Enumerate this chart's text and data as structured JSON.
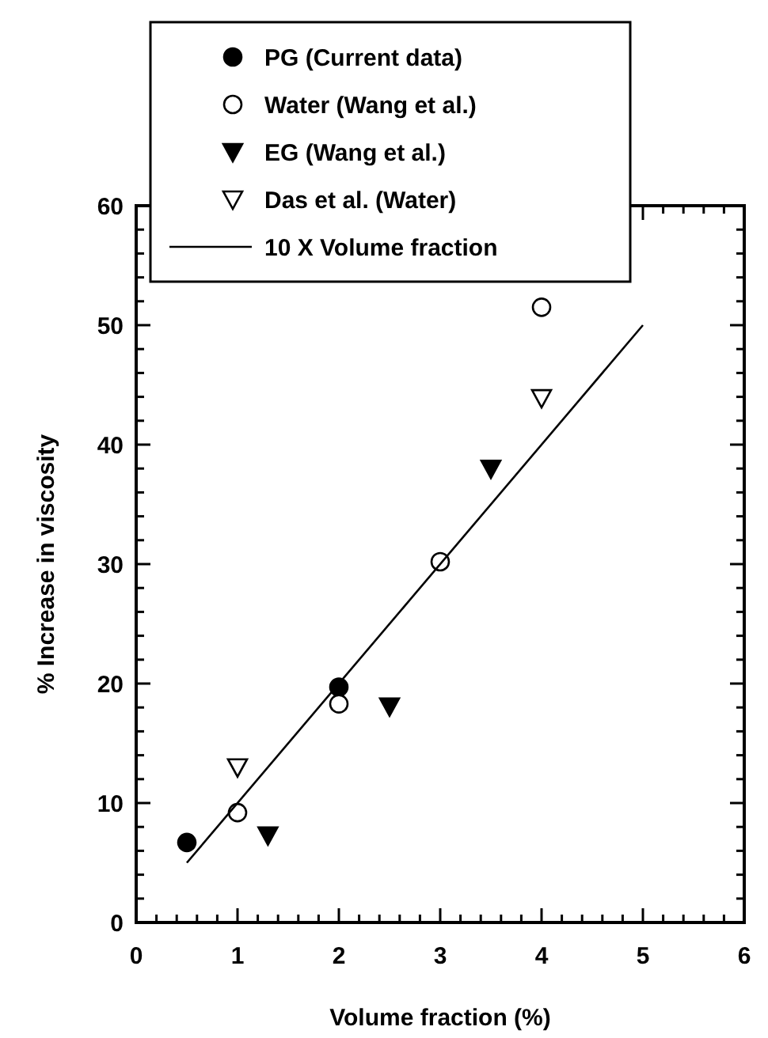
{
  "chart_data": {
    "type": "scatter",
    "xlabel": "Volume fraction (%)",
    "ylabel": "% Increase in viscosity",
    "xlim": [
      0,
      6
    ],
    "ylim": [
      0,
      60
    ],
    "xticks": [
      0,
      {
        "value": 0.2,
        "label": null
      },
      {
        "value": 0.4,
        "label": null
      },
      {
        "value": 0.6,
        "label": null
      },
      {
        "value": 0.8,
        "label": null
      },
      1,
      {
        "value": 1.2,
        "label": null
      },
      {
        "value": 1.4,
        "label": null
      },
      {
        "value": 1.6,
        "label": null
      },
      {
        "value": 1.8,
        "label": null
      },
      2,
      {
        "value": 2.2,
        "label": null
      },
      {
        "value": 2.4,
        "label": null
      },
      {
        "value": 2.6,
        "label": null
      },
      {
        "value": 2.8,
        "label": null
      },
      3,
      {
        "value": 3.2,
        "label": null
      },
      {
        "value": 3.4,
        "label": null
      },
      {
        "value": 3.6,
        "label": null
      },
      {
        "value": 3.8,
        "label": null
      },
      4,
      {
        "value": 4.2,
        "label": null
      },
      {
        "value": 4.4,
        "label": null
      },
      {
        "value": 4.6,
        "label": null
      },
      {
        "value": 4.8,
        "label": null
      },
      5,
      {
        "value": 5.2,
        "label": null
      },
      {
        "value": 5.4,
        "label": null
      },
      {
        "value": 5.6,
        "label": null
      },
      {
        "value": 5.8,
        "label": null
      },
      6
    ],
    "yticks": [
      0,
      {
        "value": 2,
        "label": null
      },
      {
        "value": 4,
        "label": null
      },
      {
        "value": 6,
        "label": null
      },
      {
        "value": 8,
        "label": null
      },
      10,
      {
        "value": 12,
        "label": null
      },
      {
        "value": 14,
        "label": null
      },
      {
        "value": 16,
        "label": null
      },
      {
        "value": 18,
        "label": null
      },
      20,
      {
        "value": 22,
        "label": null
      },
      {
        "value": 24,
        "label": null
      },
      {
        "value": 26,
        "label": null
      },
      {
        "value": 28,
        "label": null
      },
      30,
      {
        "value": 32,
        "label": null
      },
      {
        "value": 34,
        "label": null
      },
      {
        "value": 36,
        "label": null
      },
      {
        "value": 38,
        "label": null
      },
      40,
      {
        "value": 42,
        "label": null
      },
      {
        "value": 44,
        "label": null
      },
      {
        "value": 46,
        "label": null
      },
      {
        "value": 48,
        "label": null
      },
      50,
      {
        "value": 52,
        "label": null
      },
      {
        "value": 54,
        "label": null
      },
      {
        "value": 56,
        "label": null
      },
      {
        "value": 58,
        "label": null
      },
      60
    ],
    "grid": false,
    "legend": "top left",
    "series": [
      {
        "name": "PG (Current data)",
        "color": "#000000",
        "marker": "circle",
        "x": [
          0.5,
          2
        ],
        "values": [
          6.7,
          19.7
        ]
      },
      {
        "name": "Water (Wang et al.)",
        "color": "#ffffff",
        "marker": "circle",
        "x": [
          1,
          2,
          3,
          4
        ],
        "values": [
          9.2,
          18.3,
          30.2,
          51.5
        ]
      },
      {
        "name": "EG (Wang et al.)",
        "color": "#000000",
        "marker": "triangle",
        "x": [
          1.3,
          2.5,
          3.5
        ],
        "values": [
          7.3,
          18.1,
          38
        ]
      },
      {
        "name": "Das et al. (Water)",
        "color": "#ffffff",
        "marker": "triangle",
        "x": [
          1,
          4
        ],
        "values": [
          13,
          43.9
        ]
      },
      {
        "name": "10 X Volume fraction",
        "type": "line",
        "color": "#000000",
        "marker": "none",
        "line_style": "solid",
        "x": [
          0.5,
          5
        ],
        "values": [
          5,
          50
        ]
      }
    ]
  }
}
